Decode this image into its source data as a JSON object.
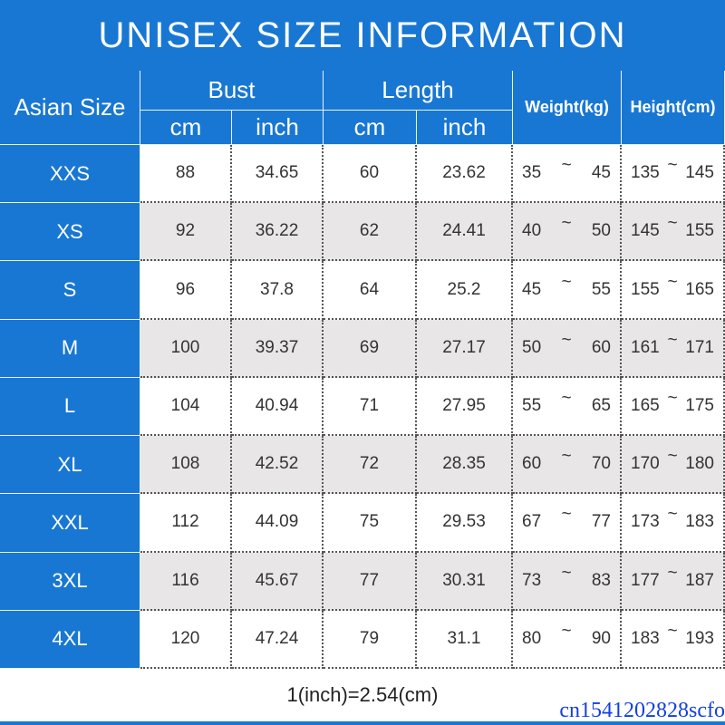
{
  "title": "UNISEX SIZE INFORMATION",
  "header": {
    "size": "Asian Size",
    "bust": "Bust",
    "length": "Length",
    "weight": "Weight(kg)",
    "height": "Height(cm)",
    "units": [
      "cm",
      "inch",
      "cm",
      "inch"
    ]
  },
  "range_separator": "~",
  "rows": [
    [
      "XXS",
      "88",
      "34.65",
      "60",
      "23.62",
      "35",
      "45",
      "135",
      "145"
    ],
    [
      "XS",
      "92",
      "36.22",
      "62",
      "24.41",
      "40",
      "50",
      "145",
      "155"
    ],
    [
      "S",
      "96",
      "37.8",
      "64",
      "25.2",
      "45",
      "55",
      "155",
      "165"
    ],
    [
      "M",
      "100",
      "39.37",
      "69",
      "27.17",
      "50",
      "60",
      "161",
      "171"
    ],
    [
      "L",
      "104",
      "40.94",
      "71",
      "27.95",
      "55",
      "65",
      "165",
      "175"
    ],
    [
      "XL",
      "108",
      "42.52",
      "72",
      "28.35",
      "60",
      "70",
      "170",
      "180"
    ],
    [
      "XXL",
      "112",
      "44.09",
      "75",
      "29.53",
      "67",
      "77",
      "173",
      "183"
    ],
    [
      "3XL",
      "116",
      "45.67",
      "77",
      "30.31",
      "73",
      "83",
      "177",
      "187"
    ],
    [
      "4XL",
      "120",
      "47.24",
      "79",
      "31.1",
      "80",
      "90",
      "183",
      "193"
    ]
  ],
  "footer": "1(inch)=2.54(cm)",
  "watermark": "cn1541202828scfo"
}
